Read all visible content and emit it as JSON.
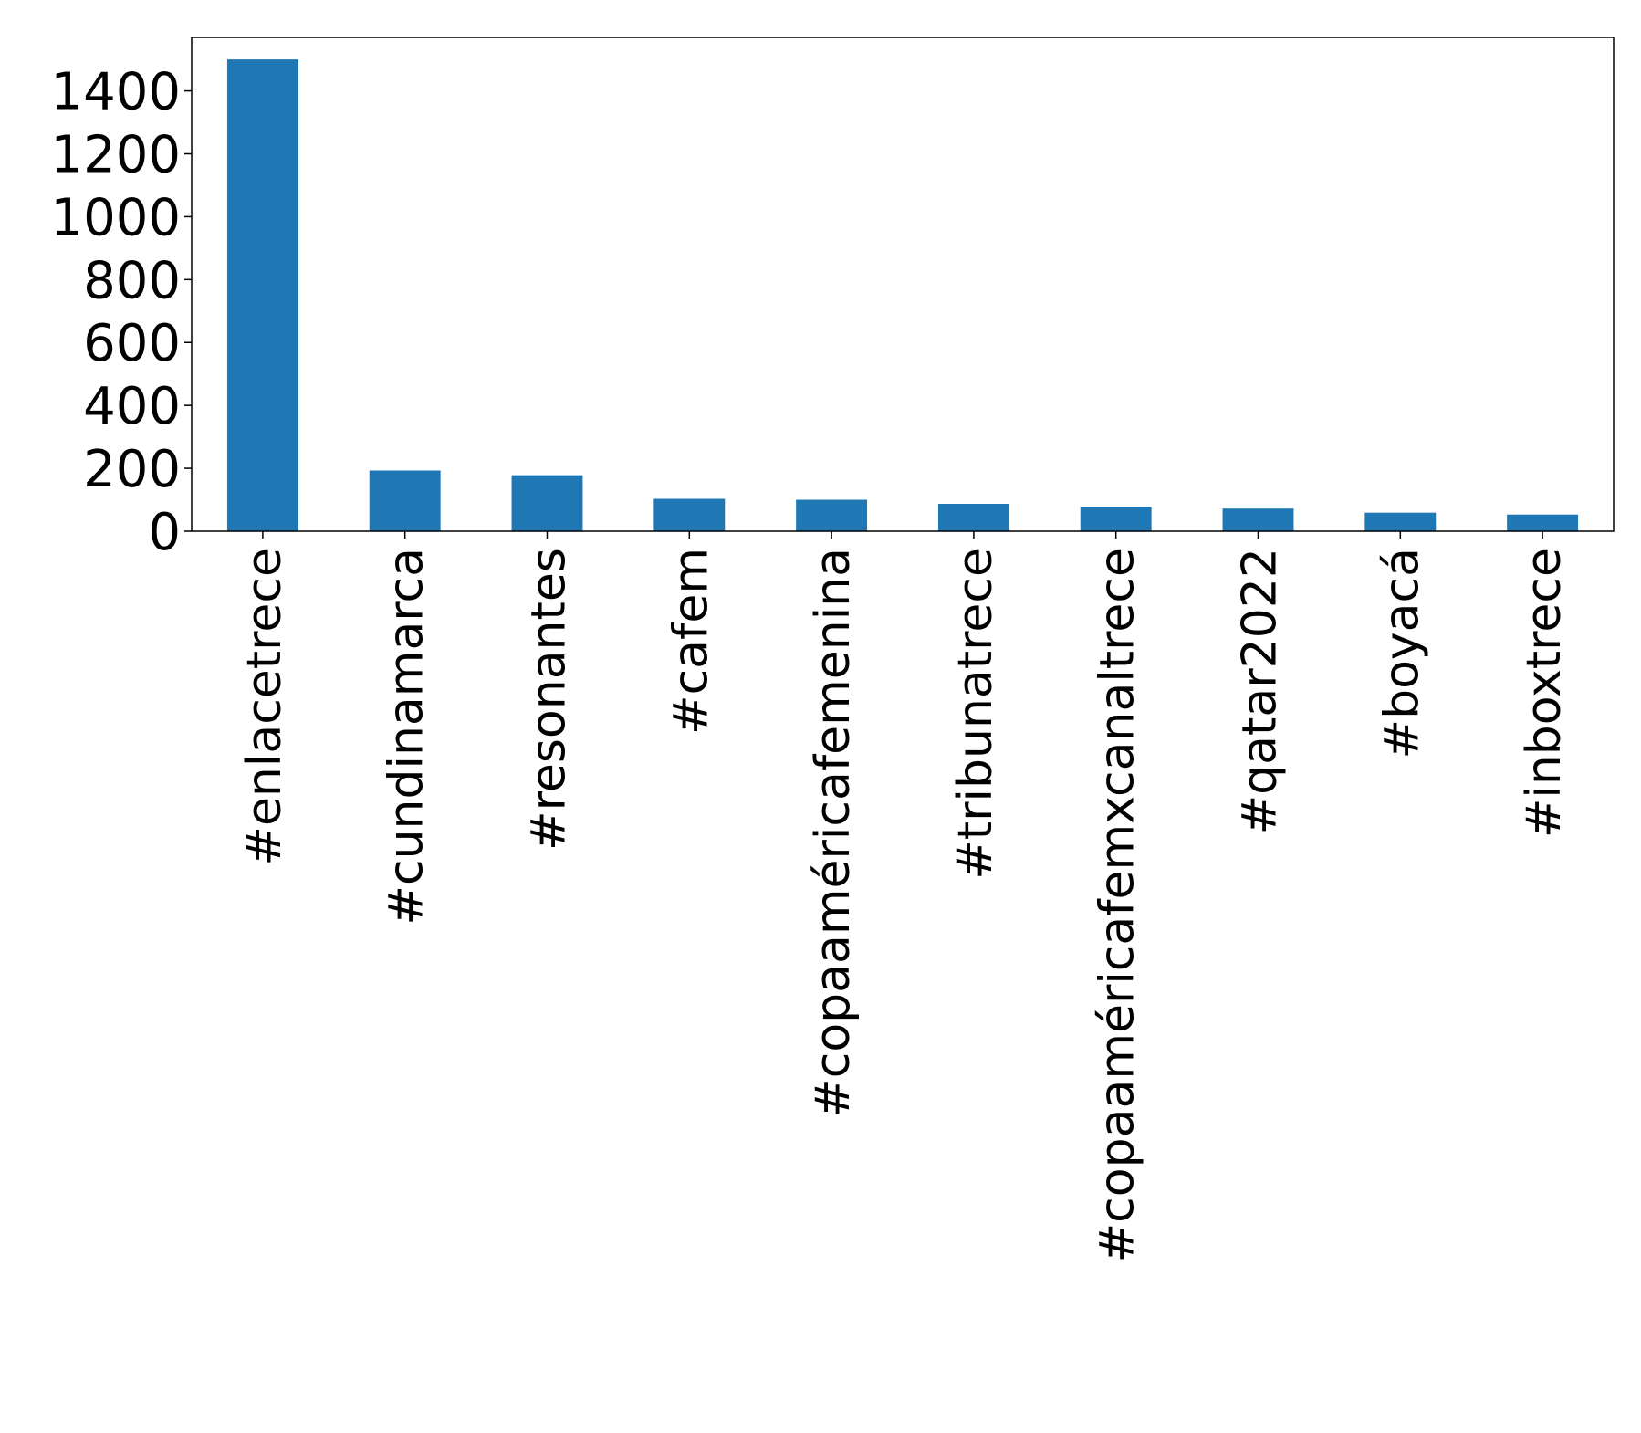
{
  "chart_data": {
    "type": "bar",
    "title": "",
    "xlabel": "",
    "ylabel": "",
    "categories": [
      "#enlacetrece",
      "#cundinamarca",
      "#resonantes",
      "#cafem",
      "#copaaméricafemenina",
      "#tribunatrece",
      "#copaaméricafemxcanaltrece",
      "#qatar2022",
      "#boyacá",
      "#inboxtrece"
    ],
    "values": [
      1500,
      193,
      178,
      103,
      100,
      87,
      78,
      72,
      59,
      53
    ],
    "ylim": [
      0,
      1570
    ],
    "yticks": [
      0,
      200,
      400,
      600,
      800,
      1000,
      1200,
      1400
    ],
    "grid": false,
    "legend": "none",
    "bar_color": "#1f77b4"
  }
}
